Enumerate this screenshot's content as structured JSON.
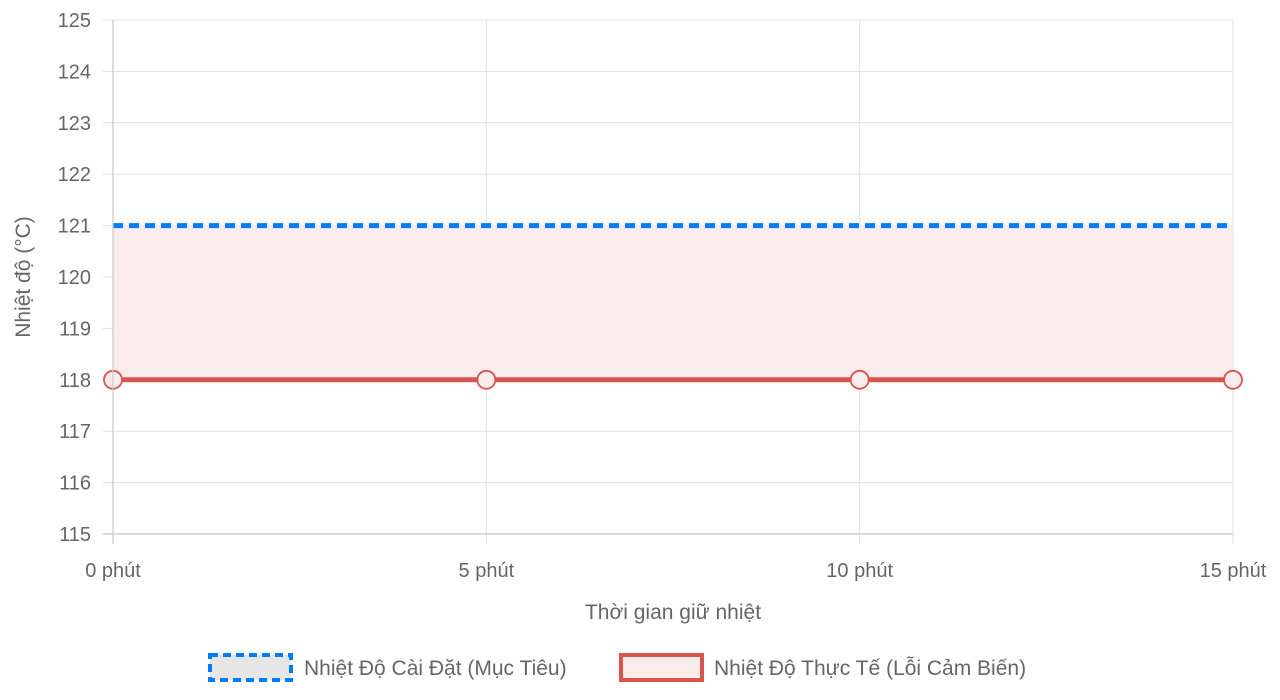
{
  "chart_data": {
    "type": "line",
    "title": "",
    "xlabel": "Thời gian giữ nhiệt",
    "ylabel": "Nhiệt độ (°C)",
    "categories": [
      "0 phút",
      "5 phút",
      "10 phút",
      "15 phút"
    ],
    "ylim": [
      115,
      125
    ],
    "y_ticks": [
      115,
      116,
      117,
      118,
      119,
      120,
      121,
      122,
      123,
      124,
      125
    ],
    "grid": true,
    "legend_position": "bottom",
    "series": [
      {
        "name": "Nhiệt Độ Cài Đặt (Mục Tiêu)",
        "values": [
          121,
          121,
          121,
          121
        ],
        "color": "#007bff",
        "line_style": "dashed",
        "fill": "none",
        "points": false
      },
      {
        "name": "Nhiệt Độ Thực Tế (Lỗi Cảm Biến)",
        "values": [
          118,
          118,
          118,
          118
        ],
        "color": "#d9534f",
        "fill_color": "#fbecec",
        "line_style": "solid",
        "fill": "previous-series",
        "points": true
      }
    ]
  }
}
